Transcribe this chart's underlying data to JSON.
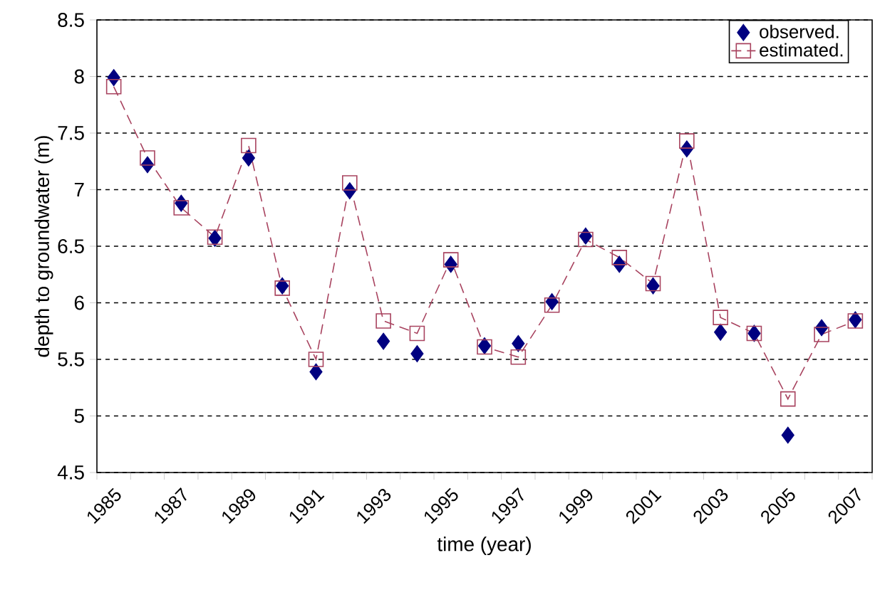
{
  "chart_data": {
    "type": "line",
    "xlabel": "time (year)",
    "ylabel": "depth to groundwater (m)",
    "categories": [
      "1985",
      null,
      "1987",
      null,
      "1989",
      null,
      "1991",
      null,
      "1993",
      null,
      "1995",
      null,
      "1997",
      null,
      "1999",
      null,
      "2001",
      null,
      "2003",
      null,
      "2005",
      null,
      "2007"
    ],
    "series": [
      {
        "name": "observed.",
        "type": "scatter",
        "color": "#000080",
        "marker": "diamond",
        "values": [
          7.99,
          7.22,
          6.88,
          6.57,
          7.28,
          6.15,
          5.39,
          6.99,
          5.66,
          5.55,
          6.34,
          5.62,
          5.64,
          6.01,
          6.59,
          6.34,
          6.15,
          7.36,
          5.74,
          5.73,
          4.83,
          5.78,
          5.85
        ]
      },
      {
        "name": "estimated.",
        "color": "#a8435f",
        "marker": "square",
        "line_style": "dashed",
        "values": [
          7.91,
          7.28,
          6.84,
          6.58,
          7.39,
          6.13,
          5.5,
          7.06,
          5.84,
          5.73,
          6.38,
          5.61,
          5.52,
          5.98,
          6.56,
          6.4,
          6.17,
          7.43,
          5.87,
          5.73,
          5.15,
          5.72,
          5.84
        ]
      }
    ],
    "ylim": [
      4.5,
      8.5
    ],
    "yticks": [
      4.5,
      5,
      5.5,
      6,
      6.5,
      7,
      7.5,
      8,
      8.5
    ],
    "grid": "y",
    "legend": "top right"
  }
}
